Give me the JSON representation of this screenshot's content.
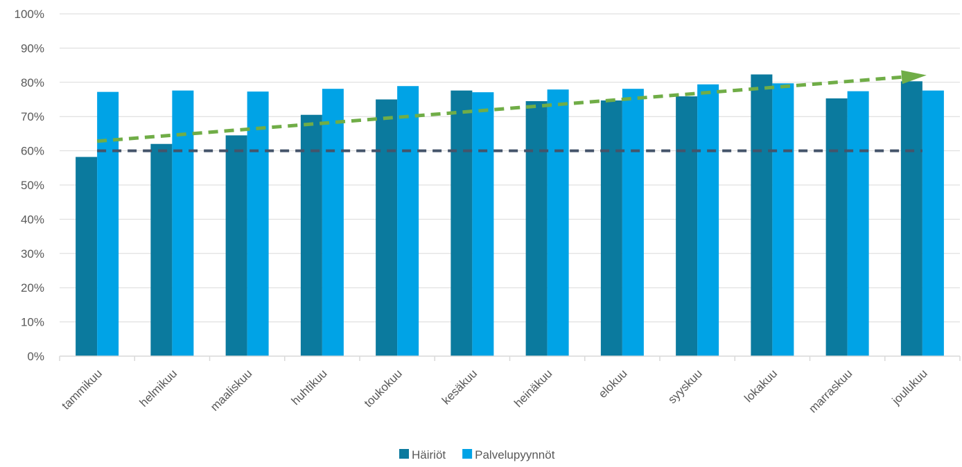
{
  "chart_data": {
    "type": "bar",
    "categories": [
      "tammikuu",
      "helmikuu",
      "maaliskuu",
      "huhtikuu",
      "toukokuu",
      "kesäkuu",
      "heinäkuu",
      "elokuu",
      "syyskuu",
      "lokakuu",
      "marraskuu",
      "joulukuu"
    ],
    "series": [
      {
        "name": "Häiriöt",
        "color": "#0b7a9e",
        "values": [
          58.2,
          62.0,
          64.5,
          70.5,
          75.0,
          77.6,
          74.5,
          74.7,
          75.9,
          82.3,
          75.3,
          80.3
        ]
      },
      {
        "name": "Palvelupyynnöt",
        "color": "#00a3e6",
        "values": [
          77.2,
          77.6,
          77.3,
          78.1,
          78.9,
          77.1,
          77.9,
          78.1,
          79.4,
          79.7,
          77.4,
          77.6
        ]
      }
    ],
    "reference_lines": [
      {
        "value": 60,
        "color": "#44546a",
        "style": "dashed"
      }
    ],
    "trend_arrow": {
      "start_value": 62.8,
      "end_value": 82.0,
      "color": "#70ad47",
      "style": "dashed"
    },
    "y_axis": {
      "ticks": [
        0,
        10,
        20,
        30,
        40,
        50,
        60,
        70,
        80,
        90,
        100
      ],
      "tick_labels": [
        "0%",
        "10%",
        "20%",
        "30%",
        "40%",
        "50%",
        "60%",
        "70%",
        "80%",
        "90%",
        "100%"
      ],
      "ylim": [
        0,
        100
      ]
    },
    "title": "",
    "xlabel": "",
    "ylabel": "",
    "grid": true,
    "legend_position": "bottom"
  }
}
